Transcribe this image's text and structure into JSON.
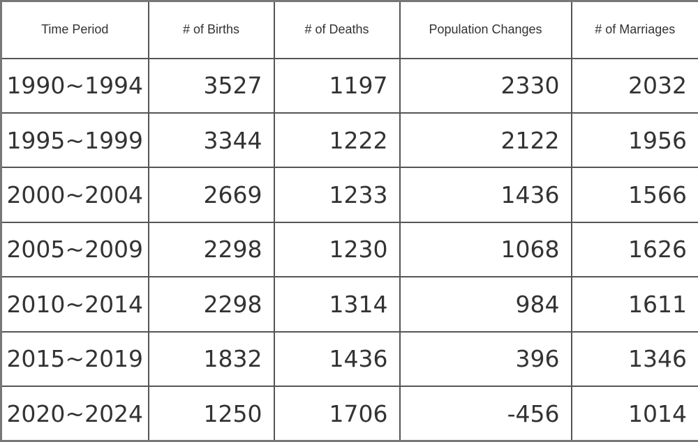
{
  "table": {
    "header": [
      "Time Period",
      "# of Births",
      "# of Deaths",
      "Population Changes",
      "# of Marriages"
    ],
    "rows": [
      [
        "1990~1994",
        "3527",
        "1197",
        "2330",
        "2032"
      ],
      [
        "1995~1999",
        "3344",
        "1222",
        "2122",
        "1956"
      ],
      [
        "2000~2004",
        "2669",
        "1233",
        "1436",
        "1566"
      ],
      [
        "2005~2009",
        "2298",
        "1230",
        "1068",
        "1626"
      ],
      [
        "2010~2014",
        "2298",
        "1314",
        "984",
        "1611"
      ],
      [
        "2015~2019",
        "1832",
        "1436",
        "396",
        "1346"
      ],
      [
        "2020~2024",
        "1250",
        "1706",
        "-456",
        "1014"
      ]
    ]
  }
}
